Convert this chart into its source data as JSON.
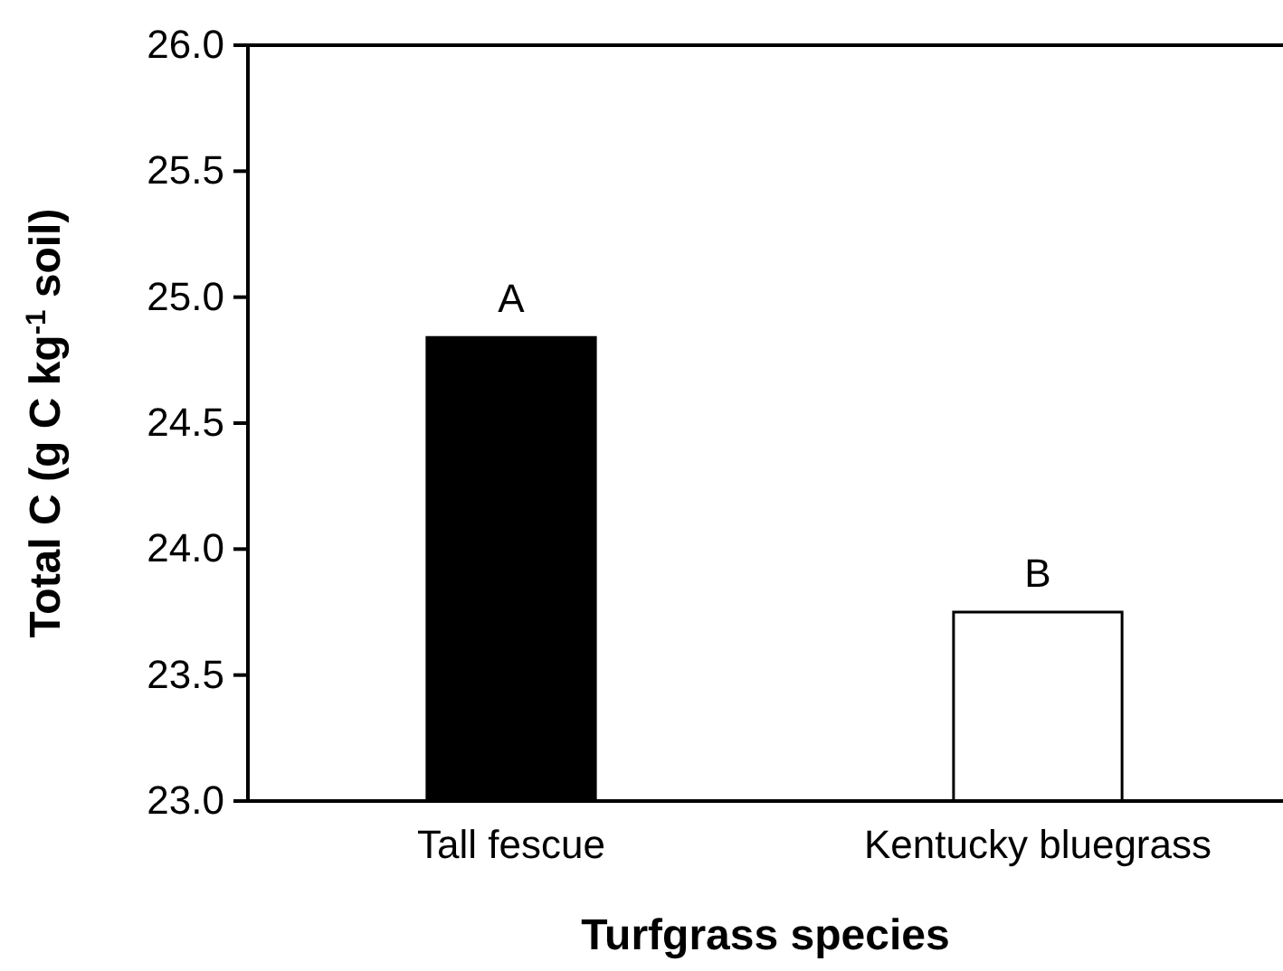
{
  "chart_data": {
    "type": "bar",
    "xlabel": "Turfgrass species",
    "ylabel": "Total C (g C kg$^{-1}$ soil)",
    "categories": [
      "Tall fescue",
      "Kentucky bluegrass"
    ],
    "values": [
      24.84,
      23.75
    ],
    "colors": [
      "#000000",
      "#ffffff"
    ],
    "ylim": [
      23.0,
      26.0
    ],
    "yticks": [
      {
        "value": 23,
        "label": "23.0"
      },
      {
        "value": 23.5,
        "label": "23.5"
      },
      {
        "value": 24,
        "label": "24.0"
      },
      {
        "value": 24.5,
        "label": "24.5"
      },
      {
        "value": 25,
        "label": "25.0"
      },
      {
        "value": 25.5,
        "label": "25.5"
      },
      {
        "value": 26,
        "label": "26.0"
      }
    ],
    "grid": false,
    "annotations": [
      {
        "text": "A",
        "x": "Tall fescue",
        "y": 24.84
      },
      {
        "text": "B",
        "x": "Kentucky bluegrass",
        "y": 23.75
      }
    ]
  }
}
